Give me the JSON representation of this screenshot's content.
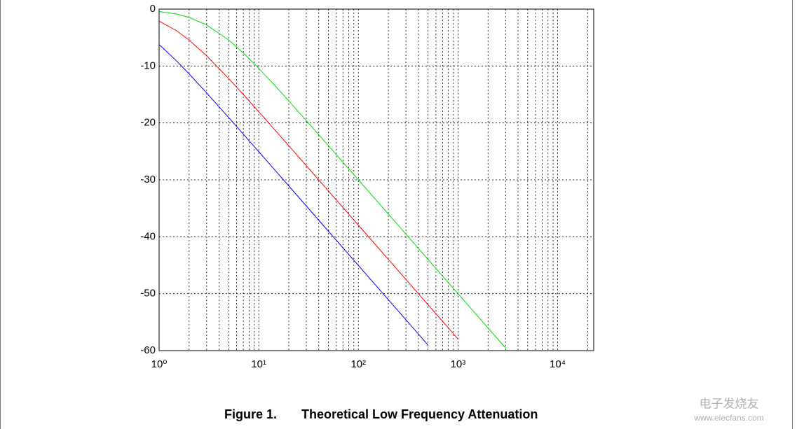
{
  "chart_data": {
    "type": "line",
    "caption_label": "Figure 1.",
    "caption": "Theoretical Low Frequency Attenuation",
    "log_x": true,
    "grid": true,
    "xlim": [
      1,
      23000
    ],
    "ylim": [
      -60,
      0
    ],
    "xticks": [
      {
        "value": 1,
        "label": "10⁰"
      },
      {
        "value": 10,
        "label": "10¹"
      },
      {
        "value": 100,
        "label": "10²"
      },
      {
        "value": 1000,
        "label": "10³"
      },
      {
        "value": 10000,
        "label": "10⁴"
      }
    ],
    "xminorticks": [
      2,
      3,
      4,
      5,
      6,
      7,
      8,
      9,
      20,
      30,
      40,
      50,
      60,
      70,
      80,
      90,
      200,
      300,
      400,
      500,
      600,
      700,
      800,
      900,
      2000,
      3000,
      4000,
      5000,
      6000,
      7000,
      8000,
      9000,
      20000
    ],
    "yticks": [
      0,
      -10,
      -20,
      -30,
      -40,
      -50,
      -60
    ],
    "x": [
      1,
      1.5,
      2,
      3,
      5,
      7,
      10,
      15,
      20,
      30,
      50,
      70,
      100,
      150,
      200,
      300,
      500,
      700,
      1000,
      1500,
      2000,
      3000
    ],
    "series": [
      {
        "color": "#00e000",
        "values": [
          -0.41,
          -0.88,
          -1.46,
          -2.79,
          -5.44,
          -7.71,
          -10.41,
          -13.71,
          -16.13,
          -19.59,
          -24.0,
          -26.91,
          -30.0,
          -33.52,
          -36.02,
          -39.54,
          -43.98,
          -46.9,
          -50.0,
          -53.52,
          -56.02,
          -59.54
        ]
      },
      {
        "color": "#ff0000",
        "values": [
          -2.11,
          -3.81,
          -5.44,
          -8.21,
          -12.21,
          -15.0,
          -18.03,
          -21.51,
          -24.0,
          -27.51,
          -31.94,
          -34.86,
          -37.96,
          -41.48,
          -43.98,
          -47.5,
          -51.94,
          -54.86,
          -57.96,
          null,
          null,
          null
        ]
      },
      {
        "color": "#0000ff",
        "values": [
          -6.22,
          -9.12,
          -11.38,
          -14.73,
          -19.07,
          -21.97,
          -25.05,
          -28.56,
          -31.06,
          -34.58,
          -39.02,
          -41.94,
          -45.04,
          -48.56,
          -51.06,
          -54.58,
          -59.02,
          null,
          null,
          null,
          null,
          null
        ]
      }
    ],
    "watermark": [
      "电子发烧友",
      "www.elecfans.com"
    ]
  }
}
